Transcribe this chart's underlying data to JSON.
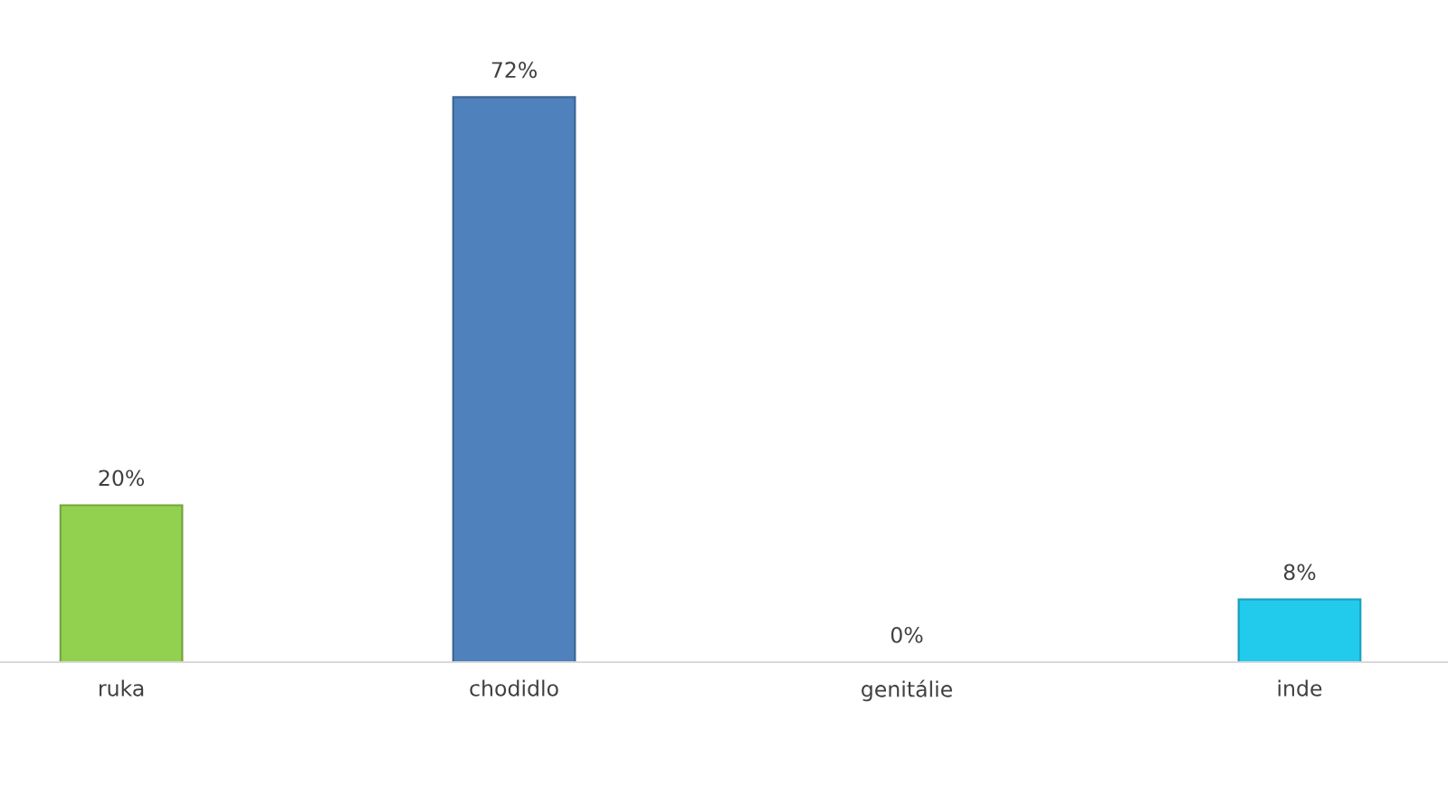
{
  "chart_data": {
    "type": "bar",
    "categories": [
      "ruka",
      "chodidlo",
      "genitálie",
      "inde"
    ],
    "values": [
      20,
      72,
      0,
      8
    ],
    "value_labels": [
      "20%",
      "72%",
      "0%",
      "8%"
    ],
    "colors": [
      "#92d050",
      "#4f81bd",
      "#a5a5a5",
      "#22cbec"
    ],
    "grid": false,
    "legend": false
  }
}
